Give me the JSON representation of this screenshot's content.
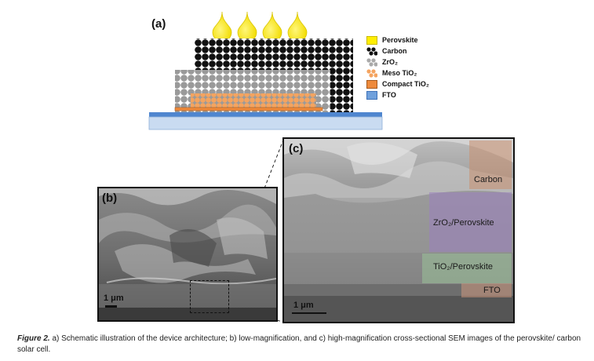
{
  "panels": {
    "a": {
      "label": "(a)"
    },
    "b": {
      "label": "(b)",
      "scale_bar": "1 μm"
    },
    "c": {
      "label": "(c)",
      "scale_bar": "1 μm",
      "layers": [
        {
          "name": "Carbon",
          "color": "#c98f6f"
        },
        {
          "name": "ZrO₂/Perovskite",
          "color": "#9b7fc0"
        },
        {
          "name": "TiO₂/Perovskite",
          "color": "#9cc79a"
        },
        {
          "name": "FTO",
          "color": "#d49a7e"
        }
      ]
    }
  },
  "legend": [
    {
      "label": "Perovskite",
      "color": "#ffee00"
    },
    {
      "label": "Carbon",
      "color": "#111111"
    },
    {
      "label": "ZrO₂",
      "color": "#a9a9a9"
    },
    {
      "label": "Meso TiO₂",
      "color": "#f4a460"
    },
    {
      "label": "Compact TiO₂",
      "color": "#ee8a3c"
    },
    {
      "label": "FTO",
      "color": "#6fa0dc"
    }
  ],
  "caption": {
    "prefix": "Figure 2.",
    "text": "a) Schematic illustration of the device architecture; b) low-magnification, and c) high-magnification cross-sectional SEM images of the perovskite/ carbon solar cell."
  }
}
